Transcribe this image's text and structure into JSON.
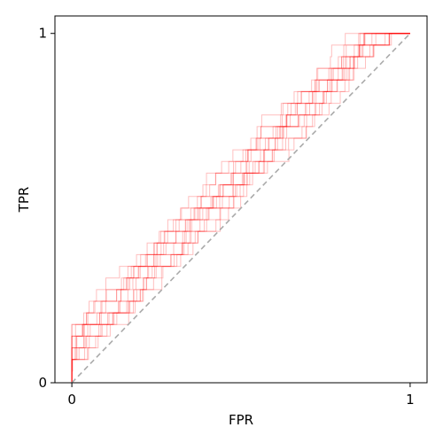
{
  "chart_data": {
    "type": "line",
    "title": "",
    "xlabel": "FPR",
    "ylabel": "TPR",
    "xlim": [
      -0.05,
      1.05
    ],
    "ylim": [
      0,
      1.05
    ],
    "xticks": [
      {
        "value": 0,
        "label": "0"
      },
      {
        "value": 1,
        "label": "1"
      }
    ],
    "yticks": [
      {
        "value": 0,
        "label": "0"
      },
      {
        "value": 1,
        "label": "1"
      }
    ],
    "grid": false,
    "legend": "none",
    "series_color": "#ff0000",
    "series_alpha": 0.25,
    "reference_line": {
      "x": [
        0,
        1
      ],
      "y": [
        0,
        1
      ],
      "color": "#aaaaaa",
      "style": "dashed"
    },
    "num_curves": 15,
    "curve_points": 100,
    "curve_steps": 30,
    "curve_offsets": [
      -0.14,
      -0.08,
      -0.1,
      -0.04,
      -0.12,
      -0.06,
      -0.09,
      -0.02,
      -0.11,
      -0.05,
      -0.13,
      -0.07,
      -0.03,
      -0.1,
      -0.06
    ]
  }
}
